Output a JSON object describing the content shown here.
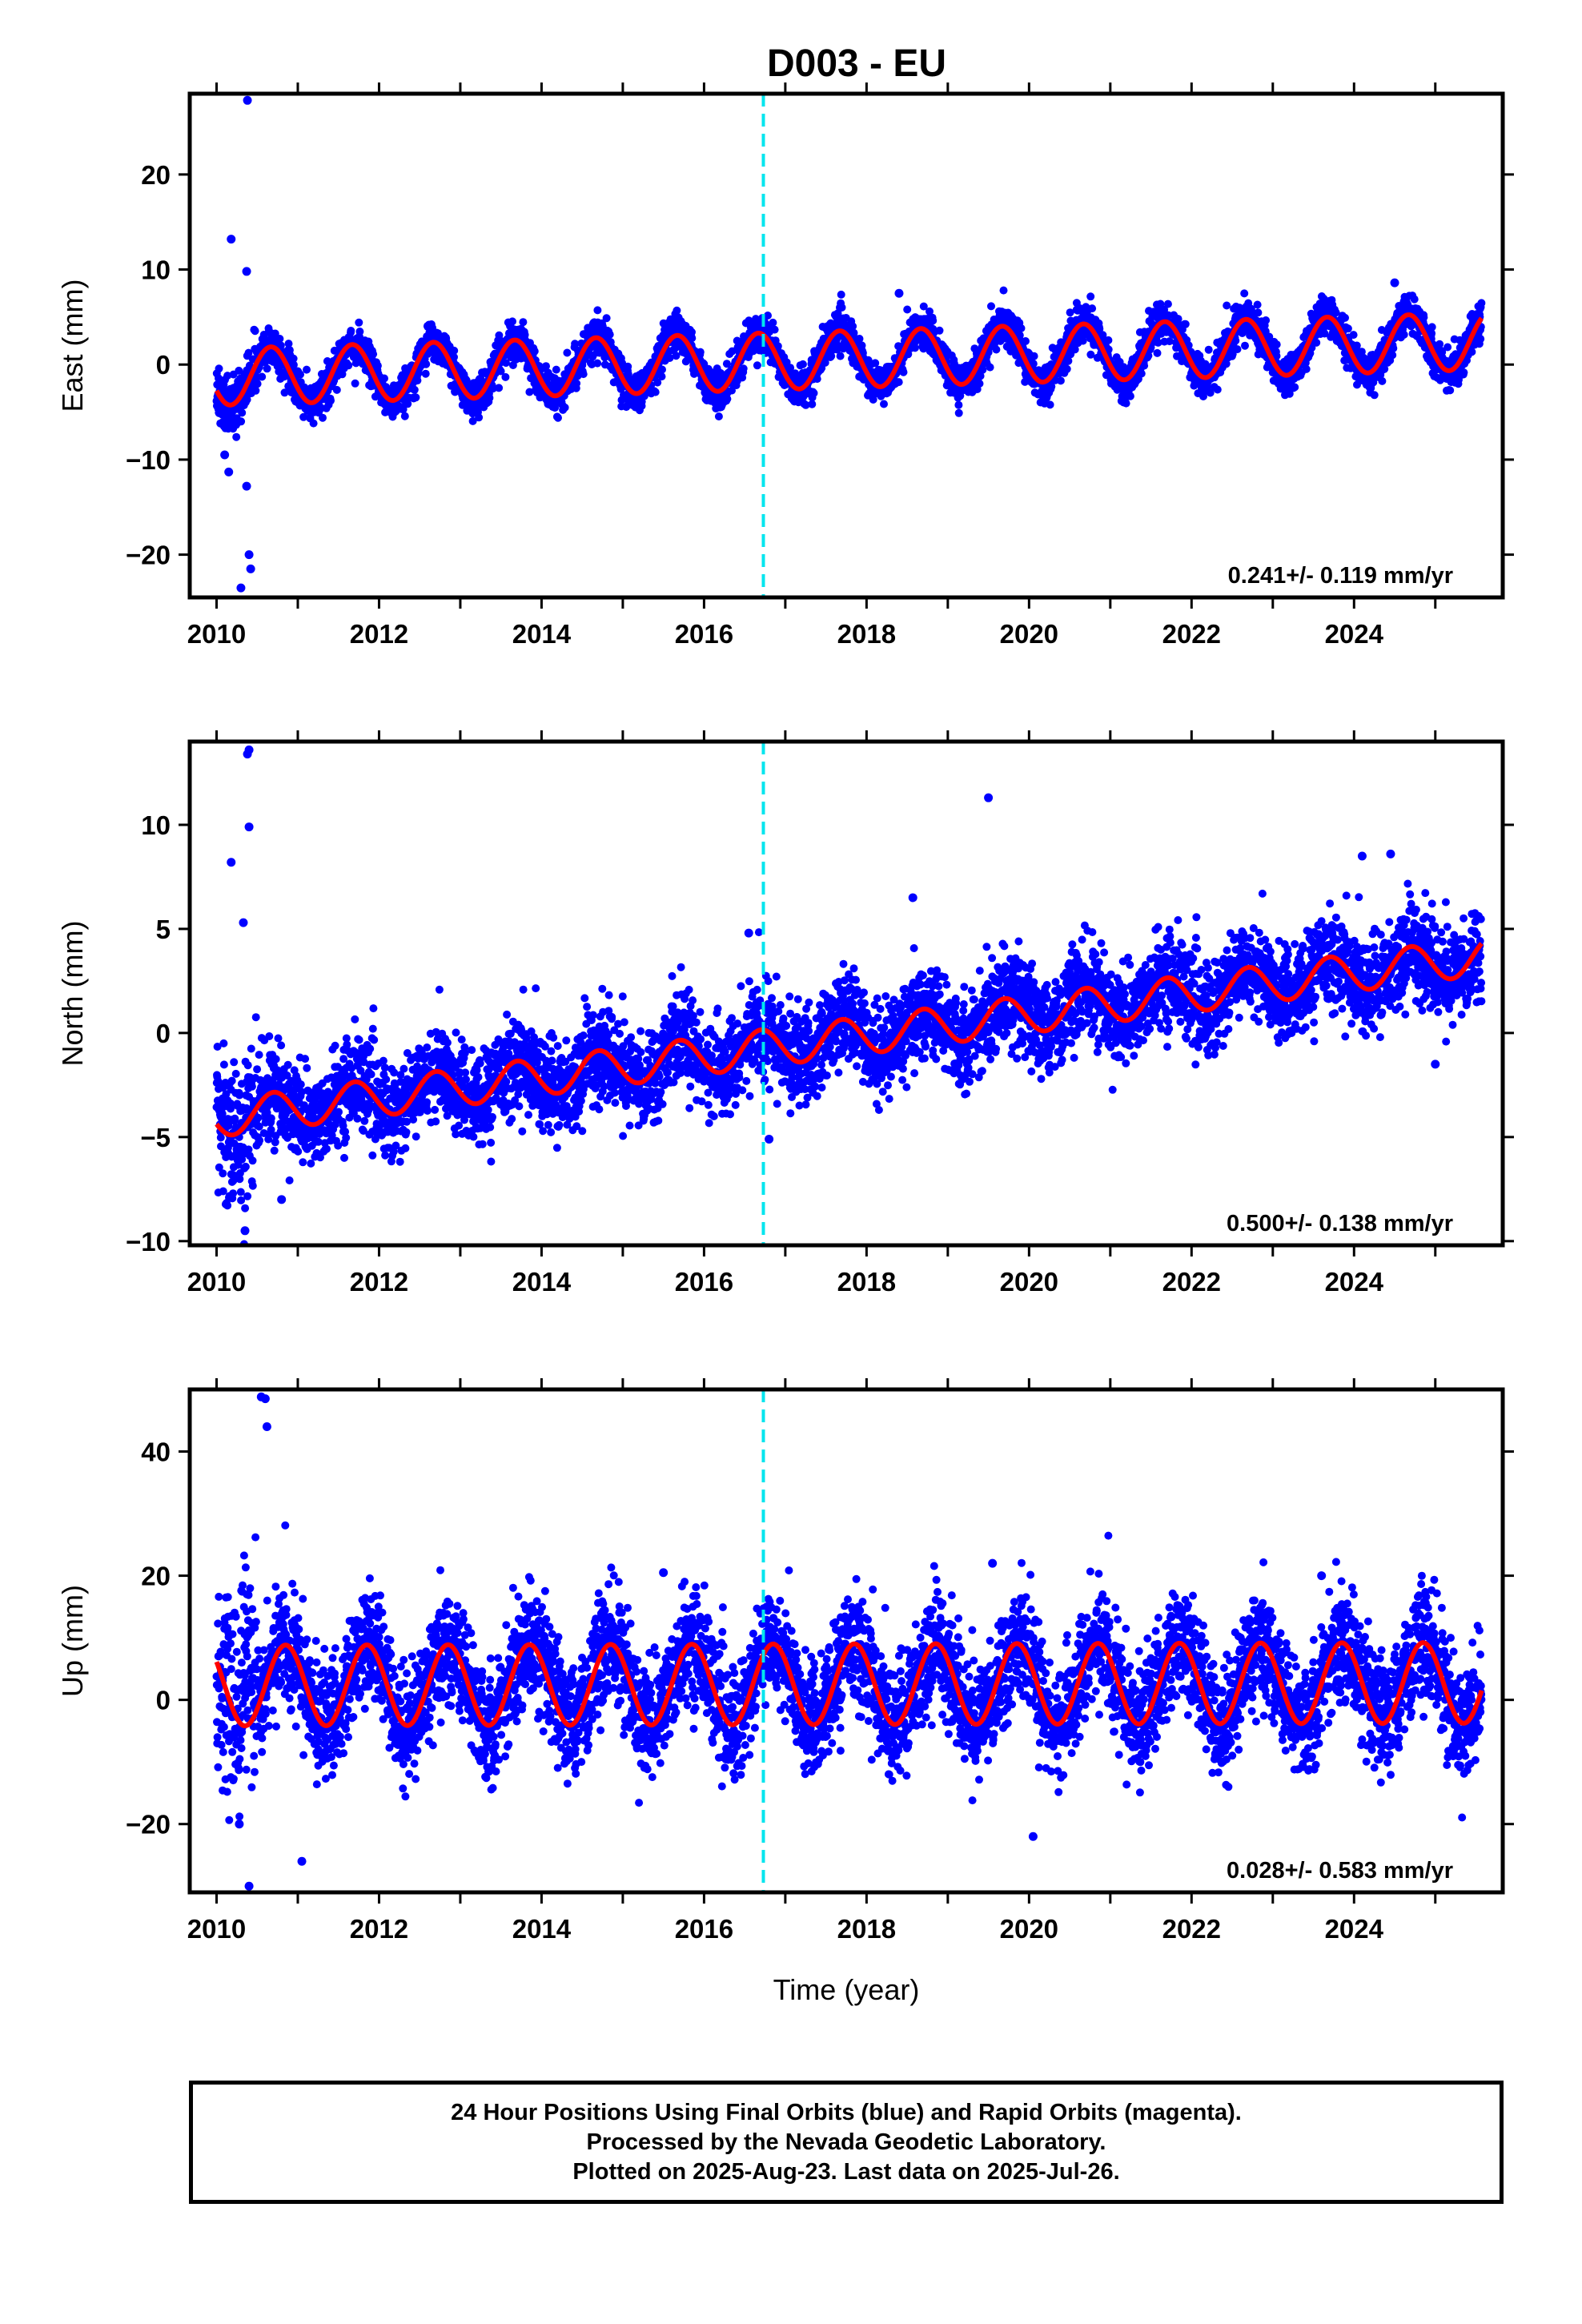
{
  "title": "D003 - EU",
  "colors": {
    "data": "#0000ff",
    "model": "#ff0000",
    "offset": "#00e5ee",
    "frame": "#000000"
  },
  "chart_data": [
    {
      "type": "scatter",
      "component": "east",
      "ylabel": "East (mm)",
      "xlabel": "",
      "xlim": [
        2009.67,
        2025.83
      ],
      "ylim": [
        -24.5,
        28.5
      ],
      "yticks": [
        -20,
        -10,
        0,
        10,
        20
      ],
      "xticks": [
        2010,
        2012,
        2014,
        2016,
        2018,
        2020,
        2022,
        2024
      ],
      "rate_text": "0.241+/- 0.119 mm/yr",
      "model": {
        "offset": -1.3,
        "rate": 0.241,
        "amplitude": 3.0,
        "phase_year": 0.42,
        "noise": 1.0
      },
      "outliers": [
        [
          2010.38,
          27.8
        ],
        [
          2010.18,
          13.2
        ],
        [
          2010.37,
          9.8
        ],
        [
          2010.3,
          -23.5
        ],
        [
          2010.4,
          -20.0
        ],
        [
          2010.42,
          -21.5
        ],
        [
          2010.37,
          -12.8
        ],
        [
          2010.15,
          -11.3
        ],
        [
          2010.1,
          -9.5
        ],
        [
          2018.4,
          7.5
        ],
        [
          2024.5,
          8.6
        ]
      ],
      "offset_epochs": [
        2016.73
      ]
    },
    {
      "type": "scatter",
      "component": "north",
      "ylabel": "North (mm)",
      "xlabel": "",
      "xlim": [
        2009.67,
        2025.83
      ],
      "ylim": [
        -10.2,
        14.0
      ],
      "yticks": [
        -10,
        -5,
        0,
        5,
        10
      ],
      "xticks": [
        2010,
        2012,
        2014,
        2016,
        2018,
        2020,
        2022,
        2024
      ],
      "rate_text": "0.500+/- 0.138 mm/yr",
      "model": {
        "offset": -4.1,
        "rate": 0.5,
        "amplitude": 0.9,
        "phase_year": 0.45,
        "noise": 1.1
      },
      "outliers": [
        [
          2010.4,
          13.6
        ],
        [
          2010.38,
          13.4
        ],
        [
          2010.4,
          9.9
        ],
        [
          2010.18,
          8.2
        ],
        [
          2010.33,
          5.3
        ],
        [
          2019.5,
          11.3
        ],
        [
          2018.57,
          6.5
        ],
        [
          2016.55,
          4.8
        ],
        [
          2024.1,
          8.5
        ],
        [
          2024.45,
          8.6
        ],
        [
          2010.35,
          -9.5
        ],
        [
          2010.8,
          -8.0
        ],
        [
          2025.0,
          -1.5
        ],
        [
          2016.8,
          -5.1
        ]
      ],
      "offset_epochs": [
        2016.73
      ]
    },
    {
      "type": "scatter",
      "component": "up",
      "ylabel": "Up (mm)",
      "xlabel": "Time (year)",
      "xlim": [
        2009.67,
        2025.83
      ],
      "ylim": [
        -31.0,
        50.0
      ],
      "yticks": [
        -20,
        0,
        20,
        40
      ],
      "xticks": [
        2010,
        2012,
        2014,
        2016,
        2018,
        2020,
        2022,
        2024
      ],
      "rate_text": "0.028+/- 0.583 mm/yr",
      "model": {
        "offset": 2.3,
        "rate": 0.028,
        "amplitude": 6.5,
        "phase_year": 0.6,
        "noise": 4.5
      },
      "outliers": [
        [
          2010.55,
          48.8
        ],
        [
          2010.6,
          48.5
        ],
        [
          2010.62,
          44.0
        ],
        [
          2010.4,
          -30.0
        ],
        [
          2010.28,
          -20.0
        ],
        [
          2011.05,
          -26.0
        ],
        [
          2019.55,
          22.0
        ],
        [
          2020.05,
          -22.0
        ],
        [
          2015.5,
          20.5
        ],
        [
          2023.6,
          20.0
        ]
      ],
      "offset_epochs": [
        2016.73
      ]
    }
  ],
  "footer": {
    "line1": "24 Hour Positions Using Final Orbits (blue) and Rapid Orbits (magenta).",
    "line2": "Processed by the Nevada Geodetic Laboratory.",
    "line3": "Plotted on 2025-Aug-23. Last data on 2025-Jul-26."
  }
}
